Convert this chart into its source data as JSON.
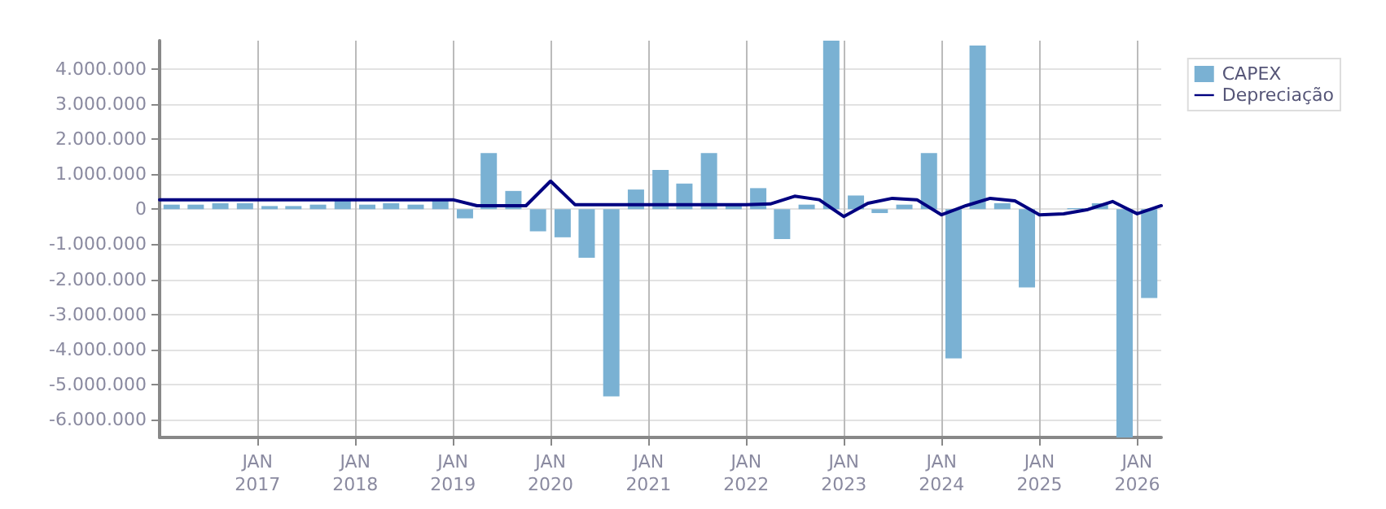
{
  "chart_data": {
    "type": "bar",
    "xlim": [
      "2016-01",
      "2026-04"
    ],
    "xticks": [
      {
        "value": "2017-01",
        "label": "JAN\n2017"
      },
      {
        "value": "2018-01",
        "label": "JAN\n2018"
      },
      {
        "value": "2019-01",
        "label": "JAN\n2019"
      },
      {
        "value": "2020-01",
        "label": "JAN\n2020"
      },
      {
        "value": "2021-01",
        "label": "JAN\n2021"
      },
      {
        "value": "2022-01",
        "label": "JAN\n2022"
      },
      {
        "value": "2023-01",
        "label": "JAN\n2023"
      },
      {
        "value": "2024-01",
        "label": "JAN\n2024"
      },
      {
        "value": "2025-01",
        "label": "JAN\n2025"
      },
      {
        "value": "2026-01",
        "label": "JAN\n2026"
      }
    ],
    "ylim": [
      -6500000,
      4800000
    ],
    "yticks": [
      {
        "value": -6000000,
        "label": "-6.000.000"
      },
      {
        "value": -5000000,
        "label": "-5.000.000"
      },
      {
        "value": -4000000,
        "label": "-4.000.000"
      },
      {
        "value": -3000000,
        "label": "-3.000.000"
      },
      {
        "value": -2000000,
        "label": "-2.000.000"
      },
      {
        "value": -1000000,
        "label": "-1.000.000"
      },
      0,
      {
        "value": 1000000,
        "label": "1.000.000"
      },
      {
        "value": 2000000,
        "label": "2.000.000"
      },
      {
        "value": 3000000,
        "label": "3.000.000"
      },
      {
        "value": 4000000,
        "label": "4.000.000"
      }
    ],
    "grid": true,
    "legend": "top right",
    "series": [
      {
        "name": "CAPEX",
        "color": "#7ab1d3",
        "x": [
          "2016-02-15",
          "2016-05-15",
          "2016-08-15",
          "2016-11-15",
          "2017-02-15",
          "2017-05-15",
          "2017-08-15",
          "2017-11-15",
          "2018-02-15",
          "2018-05-15",
          "2018-08-15",
          "2018-11-15",
          "2019-02-15",
          "2019-05-15",
          "2019-08-15",
          "2019-11-15",
          "2020-02-15",
          "2020-05-15",
          "2020-08-15",
          "2020-11-15",
          "2021-02-15",
          "2021-05-15",
          "2021-08-15",
          "2021-11-15",
          "2022-02-15",
          "2022-05-15",
          "2022-08-15",
          "2022-11-15",
          "2023-02-15",
          "2023-05-15",
          "2023-08-15",
          "2023-11-15",
          "2024-02-15",
          "2024-05-15",
          "2024-08-15",
          "2024-11-15",
          "2025-02-15",
          "2025-05-15",
          "2025-08-15",
          "2025-11-15",
          "2026-02-15"
        ],
        "values": [
          130000,
          130000,
          170000,
          170000,
          90000,
          90000,
          130000,
          270000,
          130000,
          170000,
          130000,
          270000,
          -260000,
          1600000,
          520000,
          -630000,
          -800000,
          -1380000,
          -5330000,
          560000,
          1120000,
          730000,
          1600000,
          100000,
          600000,
          -850000,
          130000,
          4800000,
          390000,
          -110000,
          130000,
          1600000,
          -4250000,
          4660000,
          170000,
          -2230000,
          null,
          30000,
          170000,
          -6500000,
          -2530000
        ]
      },
      {
        "name": "Depreciação",
        "type": "line",
        "color": "#000080",
        "line_style": "solid",
        "marker": "none",
        "x": [
          "2016-01",
          "2019-01",
          "2019-04",
          "2019-07",
          "2019-10",
          "2020-01",
          "2020-04",
          "2020-07",
          "2020-10",
          "2021-01",
          "2021-04",
          "2021-07",
          "2021-10",
          "2022-01",
          "2022-04",
          "2022-07",
          "2022-10",
          "2023-01",
          "2023-04",
          "2023-07",
          "2023-10",
          "2024-01",
          "2024-04",
          "2024-07",
          "2024-10",
          "2025-01",
          "2025-04",
          "2025-07",
          "2025-10",
          "2026-01",
          "2026-04"
        ],
        "values": [
          270000,
          270000,
          100000,
          100000,
          100000,
          800000,
          130000,
          130000,
          130000,
          130000,
          130000,
          130000,
          130000,
          130000,
          150000,
          370000,
          270000,
          -210000,
          170000,
          310000,
          270000,
          -160000,
          100000,
          310000,
          240000,
          -160000,
          -130000,
          -10000,
          220000,
          -130000,
          100000
        ]
      }
    ]
  }
}
